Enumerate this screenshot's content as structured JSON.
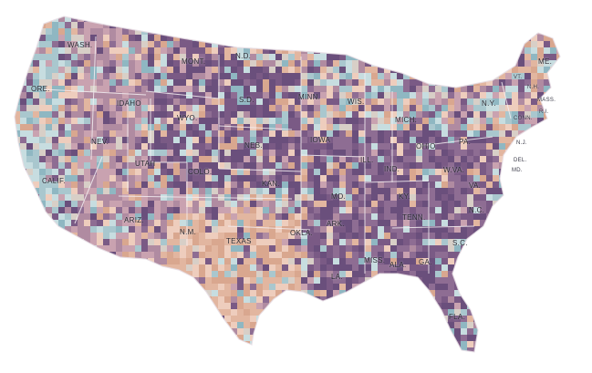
{
  "map": {
    "palette": [
      "#6a4f7c",
      "#7a5a85",
      "#8e6d93",
      "#b08ba1",
      "#c9a2b0",
      "#d9a78f",
      "#e2b6a0",
      "#eecdbd",
      "#a9c7ce",
      "#8fb7c2",
      "#c7dde0",
      "#d8cfc7"
    ],
    "labels": {
      "wash": "WASH.",
      "ore": "ORE.",
      "idaho": "IDAHO",
      "mont": "MONT.",
      "wyo": "WYO.",
      "nev": "NEV.",
      "utah": "UTAH",
      "calif": "CALIF.",
      "colo": "COLO.",
      "ariz": "ARIZ.",
      "nm": "N.M.",
      "nd": "N.D.",
      "sd": "S.D.",
      "neb": "NEB.",
      "kan": "KAN.",
      "okla": "OKLA.",
      "texas": "TEXAS",
      "minn": "MINN.",
      "iowa": "IOWA",
      "mo": "MO.",
      "ark": "ARK.",
      "la": "LA.",
      "wis": "WIS.",
      "ill": "ILL.",
      "mich": "MICH.",
      "ind": "IND.",
      "ohio": "OHIO",
      "ky": "KY.",
      "tenn": "TENN.",
      "miss": "MISS.",
      "ala": "ALA.",
      "ga": "GA.",
      "fla": "FLA.",
      "sc": "S.C.",
      "nc": "N.C.",
      "va": "VA.",
      "wva": "W.VA.",
      "pa": "PA.",
      "ny": "N.Y.",
      "vt": "VT.",
      "nh": "N.H.",
      "me": "ME.",
      "mass": "MASS.",
      "conn": "CONN.",
      "ri": "R.I.",
      "nj": "N.J.",
      "del": "DEL.",
      "md": "MD."
    }
  }
}
